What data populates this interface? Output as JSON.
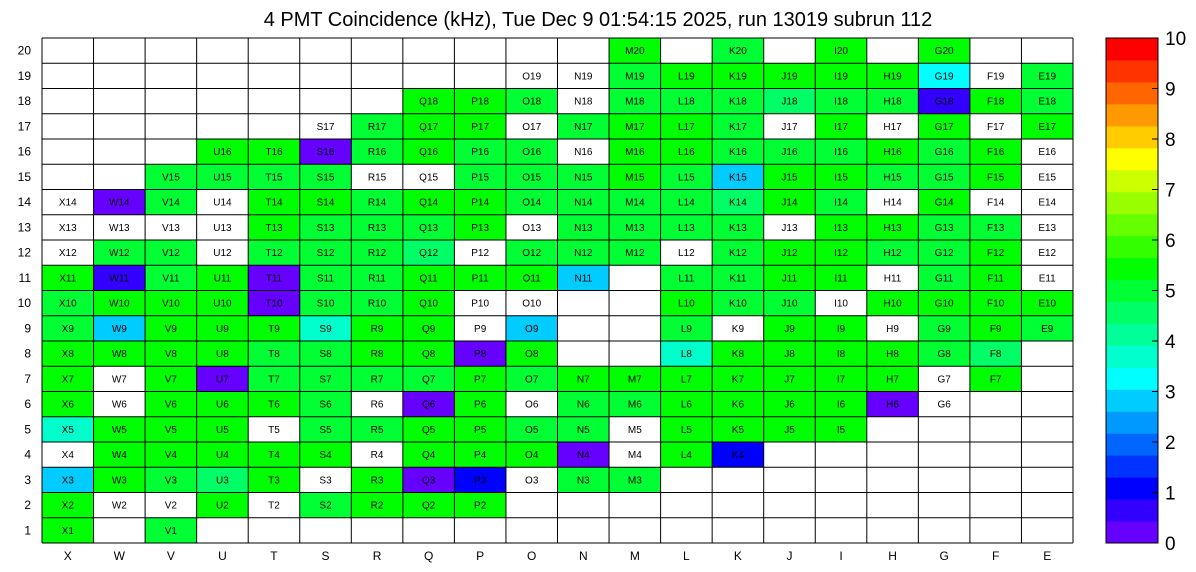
{
  "title": "4 PMT Coincidence (kHz), Tue Dec  9 01:54:15 2025, run 13019 subrun 112",
  "chart_data": {
    "type": "heatmap",
    "title": "4 PMT Coincidence (kHz), Tue Dec  9 01:54:15 2025, run 13019 subrun 112",
    "x_categories": [
      "X",
      "W",
      "V",
      "U",
      "T",
      "S",
      "R",
      "Q",
      "P",
      "O",
      "N",
      "M",
      "L",
      "K",
      "J",
      "I",
      "H",
      "G",
      "F",
      "E"
    ],
    "y_categories": [
      "1",
      "2",
      "3",
      "4",
      "5",
      "6",
      "7",
      "8",
      "9",
      "10",
      "11",
      "12",
      "13",
      "14",
      "15",
      "16",
      "17",
      "18",
      "19",
      "20"
    ],
    "zlim": [
      0,
      10
    ],
    "colorbar_ticks": [
      "0",
      "1",
      "2",
      "3",
      "4",
      "5",
      "6",
      "7",
      "8",
      "9",
      "10"
    ],
    "palette": [
      "#6600ff",
      "#3300ff",
      "#0000ff",
      "#0033ff",
      "#0066ff",
      "#0099ff",
      "#00ccff",
      "#00ffff",
      "#00ffcc",
      "#00ff99",
      "#00ff66",
      "#00ff33",
      "#00ff00",
      "#33ff00",
      "#66ff00",
      "#99ff00",
      "#ccff00",
      "#ffff00",
      "#ffcc00",
      "#ff9900",
      "#ff6600",
      "#ff3300",
      "#ff0000"
    ],
    "missing_color": "#ffffff",
    "rows": [
      {
        "y": "20",
        "cells": [
          null,
          null,
          null,
          null,
          null,
          null,
          null,
          null,
          null,
          null,
          null,
          5.3,
          null,
          4.8,
          null,
          5.4,
          null,
          5.6,
          null,
          null
        ]
      },
      {
        "y": "19",
        "cells": [
          null,
          null,
          null,
          null,
          null,
          null,
          null,
          null,
          null,
          0,
          0,
          5.2,
          5.5,
          5.3,
          5.6,
          5.6,
          5.4,
          3.2,
          0,
          5.2
        ]
      },
      {
        "y": "18",
        "cells": [
          null,
          null,
          null,
          null,
          null,
          null,
          null,
          5.5,
          5.5,
          5.2,
          0,
          5.2,
          5.2,
          5.1,
          4.6,
          5.2,
          5.2,
          0.5,
          5.4,
          5.2
        ]
      },
      {
        "y": "17",
        "cells": [
          null,
          null,
          null,
          null,
          null,
          0,
          5.2,
          5.3,
          5.3,
          0,
          5.2,
          5.4,
          5.3,
          5.2,
          0,
          5.4,
          0,
          5.6,
          0,
          5.4
        ]
      },
      {
        "y": "16",
        "cells": [
          null,
          null,
          null,
          5.3,
          5.3,
          0.4,
          5.1,
          5.3,
          5.2,
          5.0,
          0,
          5.3,
          5.3,
          5.2,
          5.2,
          5.2,
          5.3,
          5.2,
          5.3,
          0
        ]
      },
      {
        "y": "15",
        "cells": [
          null,
          null,
          5.2,
          5.2,
          5.2,
          5.2,
          0,
          0,
          5.1,
          5.2,
          5.1,
          5.3,
          5.2,
          3.0,
          5.4,
          5.3,
          5.2,
          5.2,
          5.3,
          0
        ]
      },
      {
        "y": "14",
        "cells": [
          0,
          0.4,
          5.2,
          0,
          5.4,
          5.3,
          5.2,
          5.3,
          5.3,
          5.2,
          5.2,
          5.2,
          5.2,
          4.6,
          5.4,
          5.2,
          0,
          5.4,
          0,
          0
        ]
      },
      {
        "y": "13",
        "cells": [
          0,
          0,
          0,
          0,
          5.3,
          5.2,
          5.2,
          5.2,
          5.3,
          0,
          4.8,
          5.2,
          5.2,
          5.2,
          0,
          5.3,
          5.3,
          5.0,
          4.8,
          0
        ]
      },
      {
        "y": "12",
        "cells": [
          0,
          5.2,
          5.2,
          0,
          5.2,
          5.2,
          5.2,
          4.6,
          0,
          5.2,
          5.2,
          5.2,
          0,
          5.2,
          5.4,
          5.3,
          5.2,
          4.8,
          5.4,
          0
        ]
      },
      {
        "y": "11",
        "cells": [
          5.4,
          0.5,
          5.2,
          5.3,
          0.4,
          5.2,
          5.2,
          5.3,
          5.3,
          5.3,
          3.0,
          null,
          5.2,
          5.1,
          5.3,
          5.4,
          0,
          5.2,
          5.4,
          0
        ]
      },
      {
        "y": "10",
        "cells": [
          5.2,
          5.3,
          5.3,
          5.4,
          0.4,
          5.2,
          5.0,
          5.3,
          0,
          0,
          null,
          null,
          5.4,
          5.2,
          5.2,
          0,
          5.4,
          5.3,
          5.3,
          5.3
        ]
      },
      {
        "y": "9",
        "cells": [
          5.2,
          2.9,
          5.3,
          5.4,
          5.4,
          3.8,
          5.3,
          5.4,
          0,
          3.0,
          null,
          null,
          5.1,
          0,
          5.4,
          5.4,
          0,
          5.0,
          5.3,
          5.0
        ]
      },
      {
        "y": "8",
        "cells": [
          5.3,
          5.3,
          5.3,
          5.4,
          5.2,
          5.2,
          5.3,
          5.4,
          0.4,
          5.3,
          null,
          null,
          3.8,
          5.3,
          5.4,
          5.4,
          5.4,
          5.2,
          4.4,
          null
        ]
      },
      {
        "y": "7",
        "cells": [
          5.4,
          0,
          5.3,
          0.4,
          5.2,
          5.2,
          5.2,
          5.2,
          5.4,
          5.2,
          5.3,
          5.4,
          5.3,
          5.3,
          5.3,
          5.4,
          5.3,
          0,
          5.4,
          null
        ]
      },
      {
        "y": "6",
        "cells": [
          5.4,
          0,
          5.3,
          5.3,
          5.3,
          5.2,
          0,
          0.4,
          5.3,
          0,
          5.2,
          5.2,
          5.3,
          5.3,
          5.4,
          5.3,
          0.4,
          0,
          null,
          null
        ]
      },
      {
        "y": "5",
        "cells": [
          3.8,
          5.3,
          5.3,
          5.6,
          0,
          5.2,
          5.2,
          5.3,
          5.3,
          5.2,
          5.2,
          0,
          5.3,
          5.3,
          5.4,
          5.5,
          null,
          null,
          null,
          null
        ]
      },
      {
        "y": "4",
        "cells": [
          0,
          5.3,
          5.4,
          5.4,
          5.4,
          5.4,
          0,
          5.4,
          5.4,
          5.4,
          0.4,
          0,
          5.4,
          1.0,
          null,
          null,
          null,
          null,
          null,
          null
        ]
      },
      {
        "y": "3",
        "cells": [
          3.0,
          5.3,
          5.2,
          4.6,
          5.3,
          0,
          5.4,
          0.4,
          1.3,
          0,
          5.2,
          5.2,
          null,
          null,
          null,
          null,
          null,
          null,
          null,
          null
        ]
      },
      {
        "y": "2",
        "cells": [
          5.3,
          0,
          0,
          5.6,
          0,
          4.8,
          5.3,
          5.3,
          5.4,
          null,
          null,
          null,
          null,
          null,
          null,
          null,
          null,
          null,
          null,
          null
        ]
      },
      {
        "y": "1",
        "cells": [
          5.4,
          null,
          5.2,
          null,
          null,
          null,
          null,
          null,
          null,
          null,
          null,
          null,
          null,
          null,
          null,
          null,
          null,
          null,
          null,
          null
        ]
      }
    ]
  }
}
